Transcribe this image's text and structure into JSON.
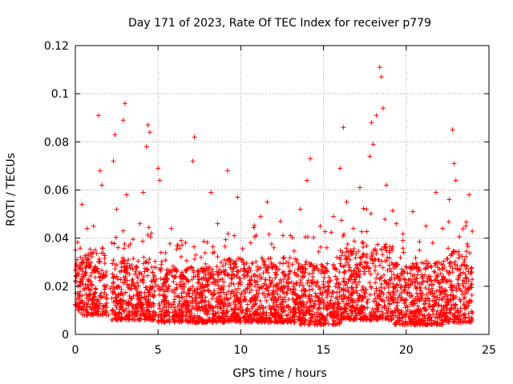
{
  "chart_data": {
    "type": "scatter",
    "title": "Day 171 of 2023, Rate Of TEC Index for receiver p779",
    "xlabel": "GPS time / hours",
    "ylabel": "ROTI / TECUs",
    "xlim": [
      0,
      25
    ],
    "ylim": [
      0,
      0.12
    ],
    "xticks": [
      0,
      5,
      10,
      15,
      20,
      25
    ],
    "xtick_labels": [
      "0",
      "5",
      "10",
      "15",
      "20",
      "25"
    ],
    "yticks": [
      0,
      0.02,
      0.04,
      0.06,
      0.08,
      0.1,
      0.12
    ],
    "ytick_labels": [
      "0",
      "0.02",
      "0.04",
      "0.06",
      "0.08",
      "0.1",
      "0.12"
    ],
    "grid": true,
    "marker": "+",
    "series": [
      {
        "name": "ROTI",
        "color": "#ff0000",
        "points": [
          [
            0.1,
            0.031
          ],
          [
            0.2,
            0.017
          ],
          [
            0.3,
            0.022
          ],
          [
            0.4,
            0.054
          ],
          [
            0.5,
            0.011
          ],
          [
            0.6,
            0.028
          ],
          [
            0.8,
            0.019
          ],
          [
            1.0,
            0.009
          ],
          [
            1.1,
            0.045
          ],
          [
            1.2,
            0.027
          ],
          [
            1.3,
            0.014
          ],
          [
            1.4,
            0.091
          ],
          [
            1.5,
            0.068
          ],
          [
            1.6,
            0.062
          ],
          [
            1.7,
            0.024
          ],
          [
            1.8,
            0.012
          ],
          [
            2.0,
            0.008
          ],
          [
            2.1,
            0.019
          ],
          [
            2.2,
            0.038
          ],
          [
            2.3,
            0.072
          ],
          [
            2.4,
            0.083
          ],
          [
            2.5,
            0.052
          ],
          [
            2.6,
            0.016
          ],
          [
            2.7,
            0.026
          ],
          [
            2.9,
            0.089
          ],
          [
            3.0,
            0.096
          ],
          [
            3.1,
            0.058
          ],
          [
            3.2,
            0.031
          ],
          [
            3.3,
            0.013
          ],
          [
            3.5,
            0.021
          ],
          [
            3.7,
            0.011
          ],
          [
            3.9,
            0.046
          ],
          [
            4.1,
            0.059
          ],
          [
            4.3,
            0.078
          ],
          [
            4.4,
            0.087
          ],
          [
            4.5,
            0.084
          ],
          [
            4.6,
            0.042
          ],
          [
            4.8,
            0.022
          ],
          [
            5.0,
            0.069
          ],
          [
            5.1,
            0.064
          ],
          [
            5.2,
            0.029
          ],
          [
            5.4,
            0.013
          ],
          [
            5.6,
            0.018
          ],
          [
            5.8,
            0.044
          ],
          [
            6.0,
            0.024
          ],
          [
            6.2,
            0.016
          ],
          [
            6.4,
            0.039
          ],
          [
            6.6,
            0.021
          ],
          [
            6.8,
            0.012
          ],
          [
            7.0,
            0.028
          ],
          [
            7.1,
            0.072
          ],
          [
            7.2,
            0.082
          ],
          [
            7.4,
            0.019
          ],
          [
            7.6,
            0.032
          ],
          [
            7.8,
            0.014
          ],
          [
            8.0,
            0.022
          ],
          [
            8.2,
            0.059
          ],
          [
            8.4,
            0.017
          ],
          [
            8.6,
            0.046
          ],
          [
            8.8,
            0.011
          ],
          [
            9.0,
            0.026
          ],
          [
            9.2,
            0.068
          ],
          [
            9.4,
            0.031
          ],
          [
            9.6,
            0.041
          ],
          [
            9.8,
            0.057
          ],
          [
            10.0,
            0.014
          ],
          [
            10.2,
            0.029
          ],
          [
            10.4,
            0.019
          ],
          [
            10.6,
            0.038
          ],
          [
            10.8,
            0.012
          ],
          [
            11.0,
            0.024
          ],
          [
            11.2,
            0.049
          ],
          [
            11.4,
            0.017
          ],
          [
            11.6,
            0.055
          ],
          [
            11.8,
            0.021
          ],
          [
            12.0,
            0.036
          ],
          [
            12.2,
            0.014
          ],
          [
            12.4,
            0.047
          ],
          [
            12.6,
            0.026
          ],
          [
            12.8,
            0.018
          ],
          [
            13.0,
            0.041
          ],
          [
            13.2,
            0.011
          ],
          [
            13.4,
            0.031
          ],
          [
            13.6,
            0.052
          ],
          [
            13.8,
            0.019
          ],
          [
            14.0,
            0.064
          ],
          [
            14.2,
            0.073
          ],
          [
            14.4,
            0.028
          ],
          [
            14.6,
            0.016
          ],
          [
            14.8,
            0.045
          ],
          [
            15.0,
            0.022
          ],
          [
            15.2,
            0.036
          ],
          [
            15.4,
            0.012
          ],
          [
            15.6,
            0.049
          ],
          [
            15.8,
            0.027
          ],
          [
            16.0,
            0.069
          ],
          [
            16.2,
            0.086
          ],
          [
            16.4,
            0.055
          ],
          [
            16.6,
            0.031
          ],
          [
            16.8,
            0.044
          ],
          [
            17.0,
            0.018
          ],
          [
            17.2,
            0.061
          ],
          [
            17.4,
            0.038
          ],
          [
            17.6,
            0.052
          ],
          [
            17.8,
            0.074
          ],
          [
            17.9,
            0.088
          ],
          [
            18.0,
            0.079
          ],
          [
            18.2,
            0.091
          ],
          [
            18.4,
            0.111
          ],
          [
            18.5,
            0.107
          ],
          [
            18.6,
            0.094
          ],
          [
            18.8,
            0.062
          ],
          [
            19.0,
            0.034
          ],
          [
            19.2,
            0.021
          ],
          [
            19.4,
            0.046
          ],
          [
            19.6,
            0.016
          ],
          [
            19.8,
            0.039
          ],
          [
            20.0,
            0.012
          ],
          [
            20.2,
            0.028
          ],
          [
            20.4,
            0.051
          ],
          [
            20.6,
            0.019
          ],
          [
            20.8,
            0.035
          ],
          [
            21.0,
            0.024
          ],
          [
            21.2,
            0.045
          ],
          [
            21.4,
            0.014
          ],
          [
            21.6,
            0.038
          ],
          [
            21.8,
            0.059
          ],
          [
            22.0,
            0.027
          ],
          [
            22.2,
            0.044
          ],
          [
            22.4,
            0.018
          ],
          [
            22.6,
            0.056
          ],
          [
            22.8,
            0.085
          ],
          [
            22.9,
            0.071
          ],
          [
            23.0,
            0.064
          ],
          [
            23.2,
            0.033
          ],
          [
            23.4,
            0.021
          ],
          [
            23.6,
            0.045
          ],
          [
            23.8,
            0.058
          ],
          [
            23.9,
            0.026
          ]
        ]
      }
    ],
    "density_bands": [
      {
        "x_start": 0.0,
        "x_end": 0.3,
        "y_min": 0.01,
        "y_max": 0.03
      },
      {
        "x_start": 0.3,
        "x_end": 1.9,
        "y_min": 0.008,
        "y_max": 0.034
      },
      {
        "x_start": 2.2,
        "x_end": 4.9,
        "y_min": 0.006,
        "y_max": 0.032
      },
      {
        "x_start": 5.0,
        "x_end": 8.8,
        "y_min": 0.005,
        "y_max": 0.028
      },
      {
        "x_start": 8.8,
        "x_end": 13.5,
        "y_min": 0.005,
        "y_max": 0.032
      },
      {
        "x_start": 13.5,
        "x_end": 16.0,
        "y_min": 0.004,
        "y_max": 0.03
      },
      {
        "x_start": 16.0,
        "x_end": 19.3,
        "y_min": 0.006,
        "y_max": 0.038
      },
      {
        "x_start": 19.3,
        "x_end": 22.2,
        "y_min": 0.004,
        "y_max": 0.03
      },
      {
        "x_start": 22.2,
        "x_end": 24.0,
        "y_min": 0.005,
        "y_max": 0.035
      }
    ]
  }
}
